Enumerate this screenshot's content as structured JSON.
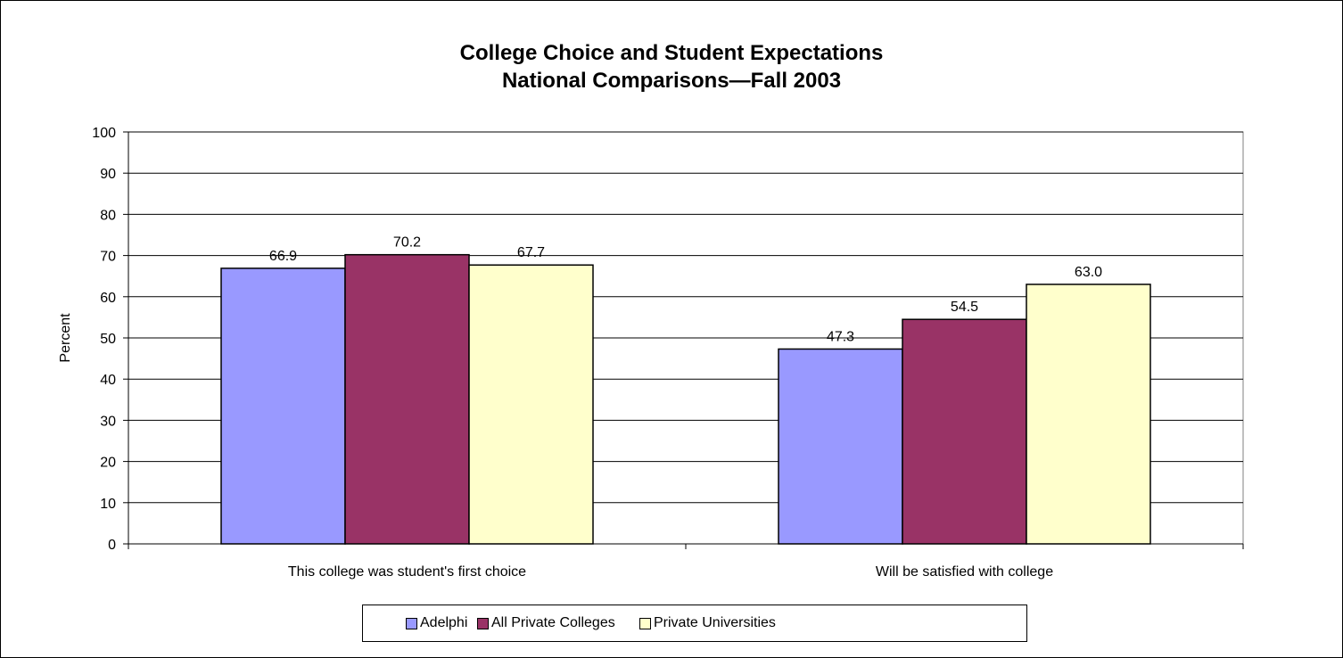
{
  "chart_data": {
    "type": "bar",
    "title": [
      "College Choice and Student Expectations",
      "National Comparisons—Fall 2003"
    ],
    "ylabel": "Percent",
    "xlabel": "",
    "ylim": [
      0,
      100
    ],
    "yticks": [
      0,
      10,
      20,
      30,
      40,
      50,
      60,
      70,
      80,
      90,
      100
    ],
    "grid": true,
    "legend_position": "bottom",
    "categories": [
      "This college was student's first choice",
      "Will be satisfied with college"
    ],
    "series": [
      {
        "name": "Adelphi",
        "values": [
          66.9,
          47.3
        ],
        "labels": [
          "66.9",
          "47.3"
        ],
        "color": "#9999ff"
      },
      {
        "name": "All Private Colleges",
        "values": [
          70.2,
          54.5
        ],
        "labels": [
          "70.2",
          "54.5"
        ],
        "color": "#993366"
      },
      {
        "name": "Private Universities",
        "values": [
          67.7,
          63.0
        ],
        "labels": [
          "67.7",
          "63.0"
        ],
        "color": "#ffffcc"
      }
    ]
  }
}
